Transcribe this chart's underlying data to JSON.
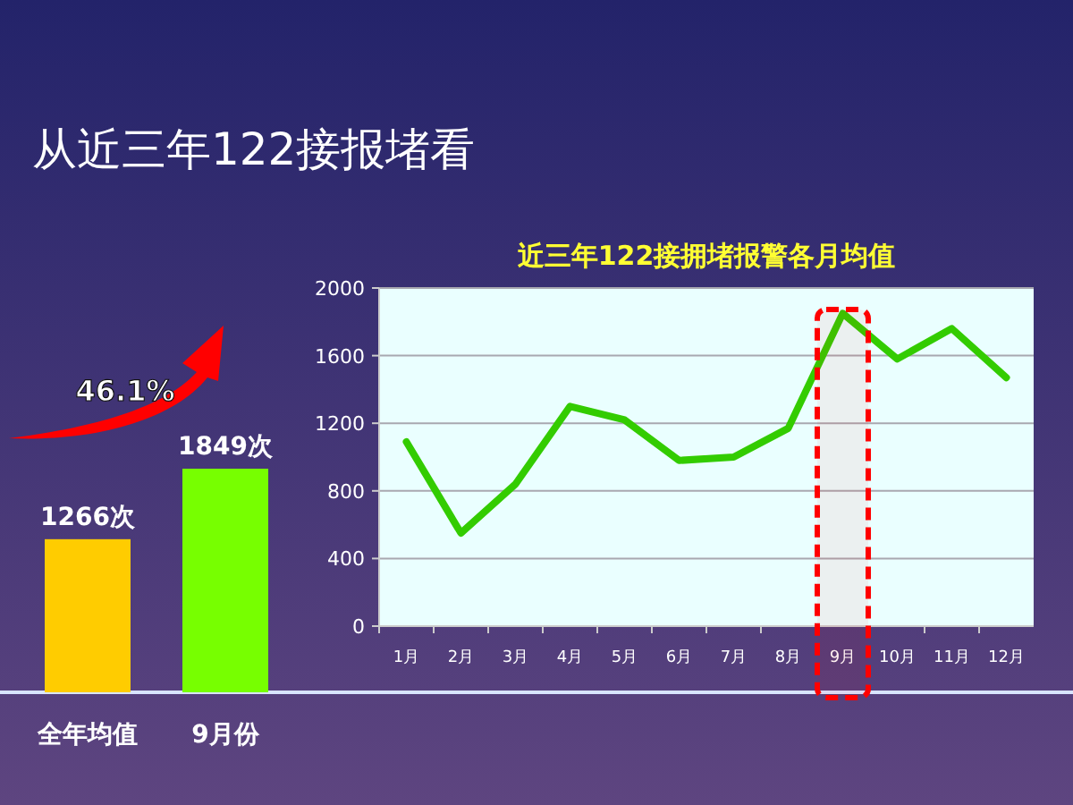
{
  "chart_data": [
    {
      "type": "bar",
      "title": "从近三年122接报堵看",
      "categories": [
        "全年均值",
        "9月份"
      ],
      "values": [
        1266,
        1849
      ],
      "colors": [
        "#ffcc00",
        "#77ff00"
      ],
      "value_labels": [
        "1266次",
        "1849次"
      ],
      "annotations": [
        "46.1%"
      ]
    },
    {
      "type": "line",
      "title": "近三年122接拥堵报警各月均值",
      "categories": [
        "1月",
        "2月",
        "3月",
        "4月",
        "5月",
        "6月",
        "7月",
        "8月",
        "9月",
        "10月",
        "11月",
        "12月"
      ],
      "values": [
        1090,
        550,
        840,
        1300,
        1220,
        980,
        1000,
        1170,
        1850,
        1580,
        1760,
        1470
      ],
      "color": "#33cc00",
      "ylim": [
        0,
        2000
      ],
      "yticks": [
        0,
        400,
        800,
        1200,
        1600,
        2000
      ],
      "grid": "y",
      "bands": [
        {
          "axis": "x",
          "from": "9月",
          "to": "9月",
          "color": "#ff0000"
        }
      ]
    }
  ]
}
